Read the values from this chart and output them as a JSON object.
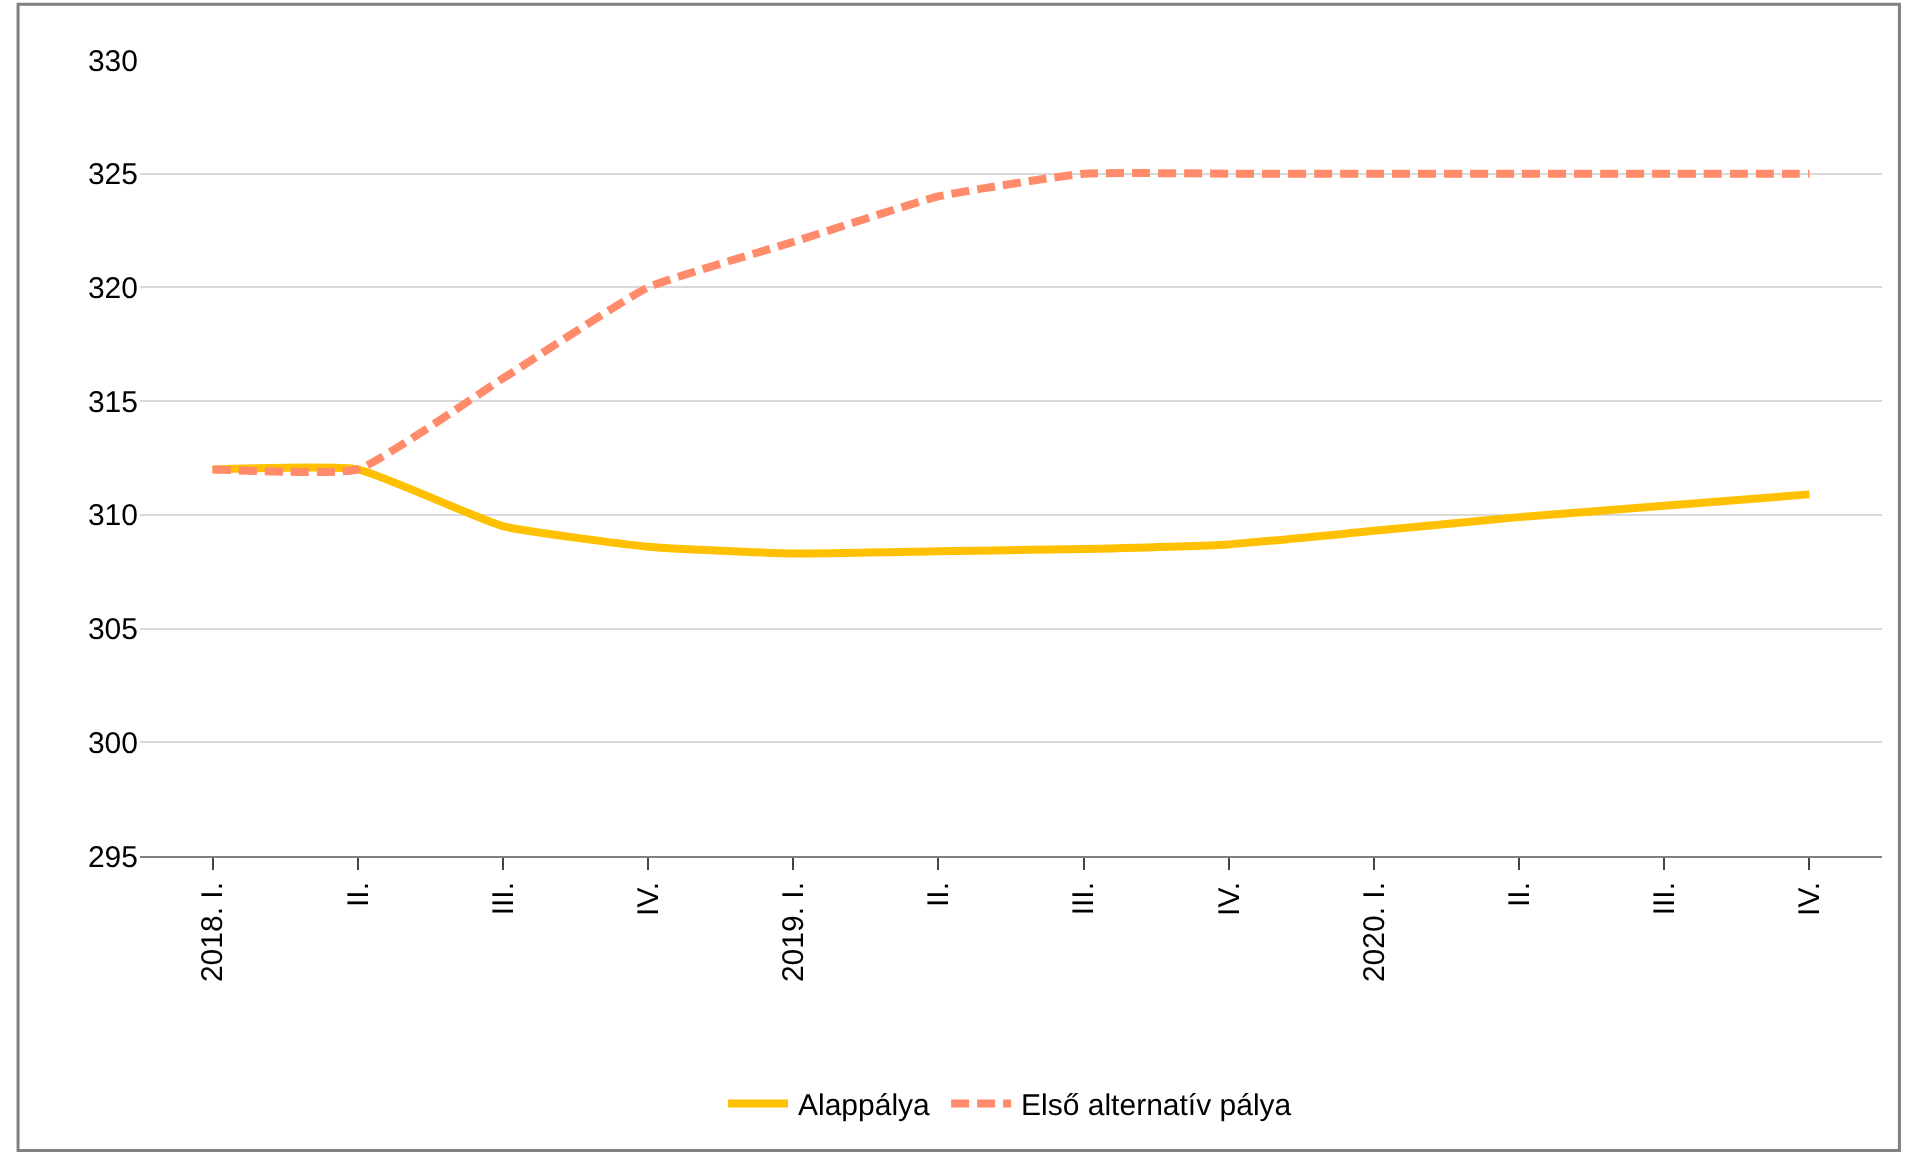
{
  "chart_data": {
    "type": "line",
    "categories": [
      "2018. I.",
      "II.",
      "III.",
      "IV.",
      "2019. I.",
      "II.",
      "III.",
      "IV.",
      "2020. I.",
      "II.",
      "III.",
      "IV."
    ],
    "series": [
      {
        "name": "Alappálya",
        "color": "#ffc000",
        "line_style": "solid",
        "values": [
          312,
          312,
          309.5,
          308.6,
          308.3,
          308.4,
          308.5,
          308.7,
          309.3,
          309.9,
          310.4,
          310.9
        ]
      },
      {
        "name": "Első alternatív pálya",
        "color": "#ff8b6a",
        "line_style": "dashed",
        "values": [
          312,
          312,
          316,
          320,
          322,
          324,
          325,
          325,
          325,
          325,
          325,
          325
        ]
      }
    ],
    "ylim": [
      295,
      330
    ],
    "yticks": [
      295,
      300,
      305,
      310,
      315,
      320,
      325,
      330
    ],
    "grid": "y",
    "legend": "bottom",
    "marker": "none"
  }
}
